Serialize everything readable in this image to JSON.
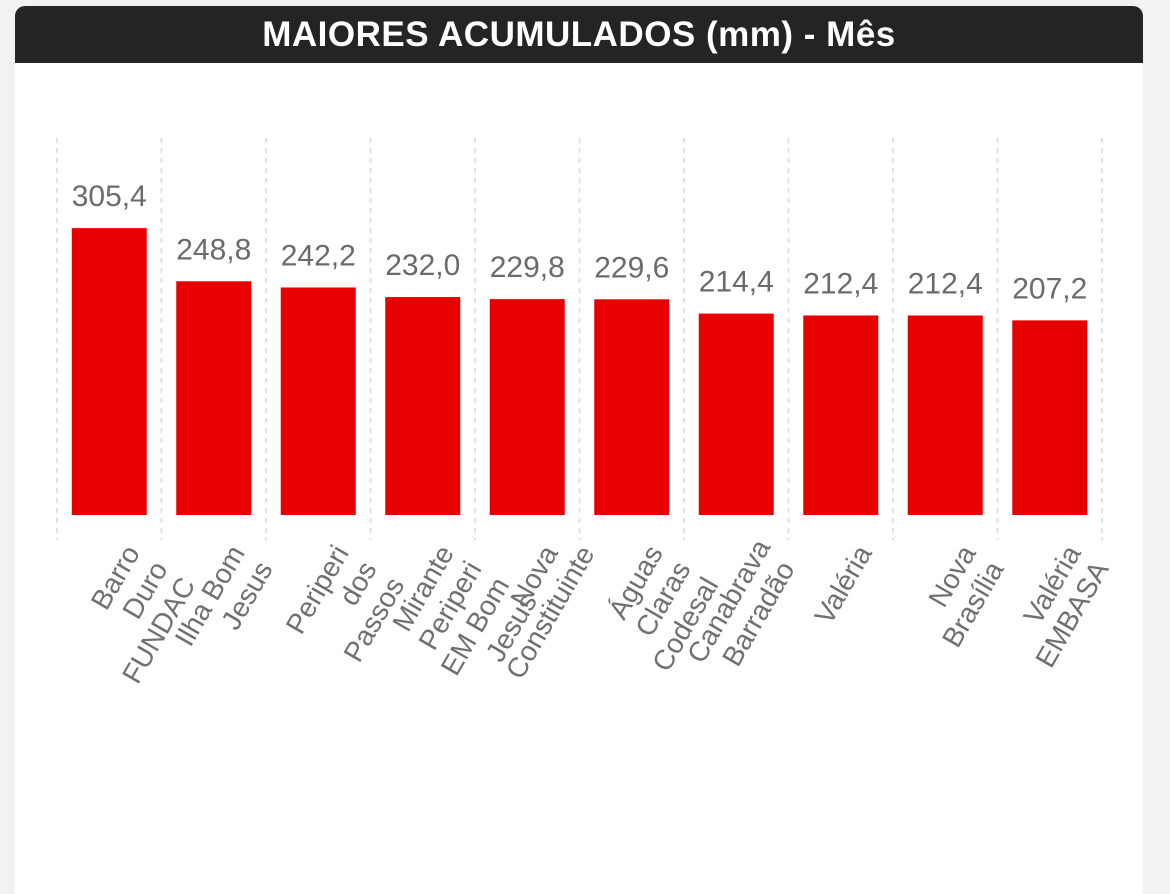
{
  "chart_data": {
    "type": "bar",
    "title": "MAIORES ACUMULADOS (mm) - Mês",
    "categories": [
      "Barro Duro FUNDAC",
      "Ilha Bom Jesus",
      "Periperi dos Passos",
      "Mirante Periperi EM Bom Jesus",
      "Nova Constituinte",
      "Águas Claras Codesal",
      "Canabrava Barradão",
      "Valéria",
      "Nova Brasília",
      "Valéria EMBASA"
    ],
    "values": [
      305.4,
      248.8,
      242.2,
      232.0,
      229.8,
      229.6,
      214.4,
      212.4,
      212.4,
      207.2
    ],
    "value_labels": [
      "305,4",
      "248,8",
      "242,2",
      "232,0",
      "229,8",
      "229,6",
      "214,4",
      "212,4",
      "212,4",
      "207,2"
    ],
    "color": "#e80000",
    "ylim": [
      0,
      330
    ]
  }
}
